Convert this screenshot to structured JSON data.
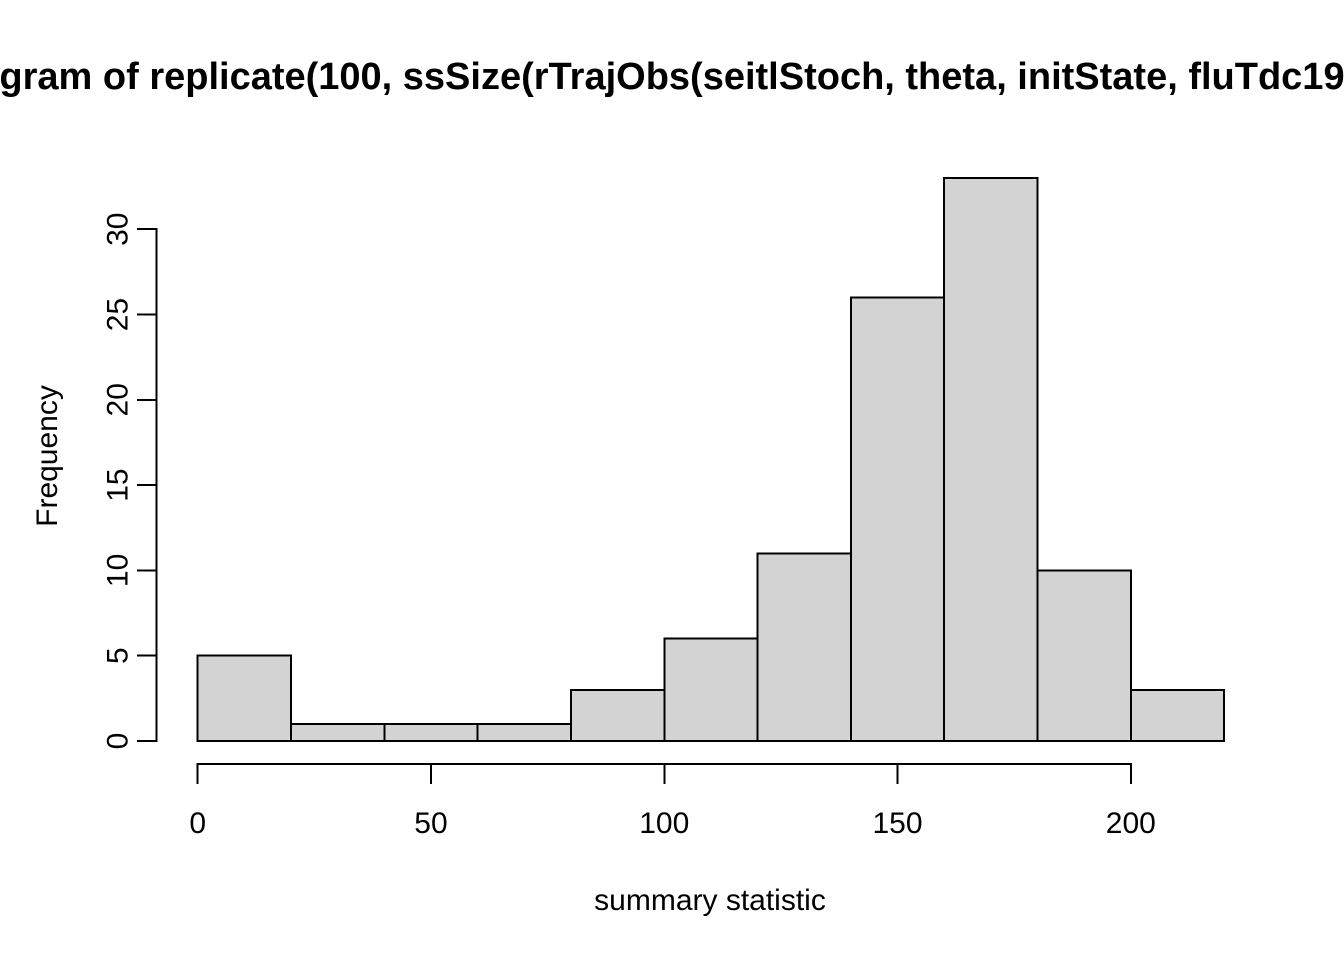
{
  "figure": {
    "background": "#ffffff",
    "kind": "R base graphics histogram"
  },
  "chart_data": {
    "type": "bar",
    "subtype": "histogram",
    "title": "gram of replicate(100, ssSize(rTrajObs(seitlStoch, theta, initState, fluTdc19",
    "xlabel": "summary statistic",
    "ylabel": "Frequency",
    "bin_edges": [
      0,
      20,
      40,
      60,
      80,
      100,
      120,
      140,
      160,
      180,
      200,
      220
    ],
    "counts": [
      5,
      1,
      1,
      1,
      3,
      6,
      11,
      26,
      33,
      10,
      3
    ],
    "x_ticks": [
      0,
      50,
      100,
      150,
      200
    ],
    "y_ticks": [
      0,
      5,
      10,
      15,
      20,
      25,
      30
    ],
    "xlim": [
      0,
      220
    ],
    "ylim": [
      0,
      33
    ],
    "grid": false,
    "legend": null,
    "bar_fill": "#d3d3d3",
    "bar_stroke": "#000000",
    "axis_color": "#000000",
    "text_color": "#000000"
  }
}
